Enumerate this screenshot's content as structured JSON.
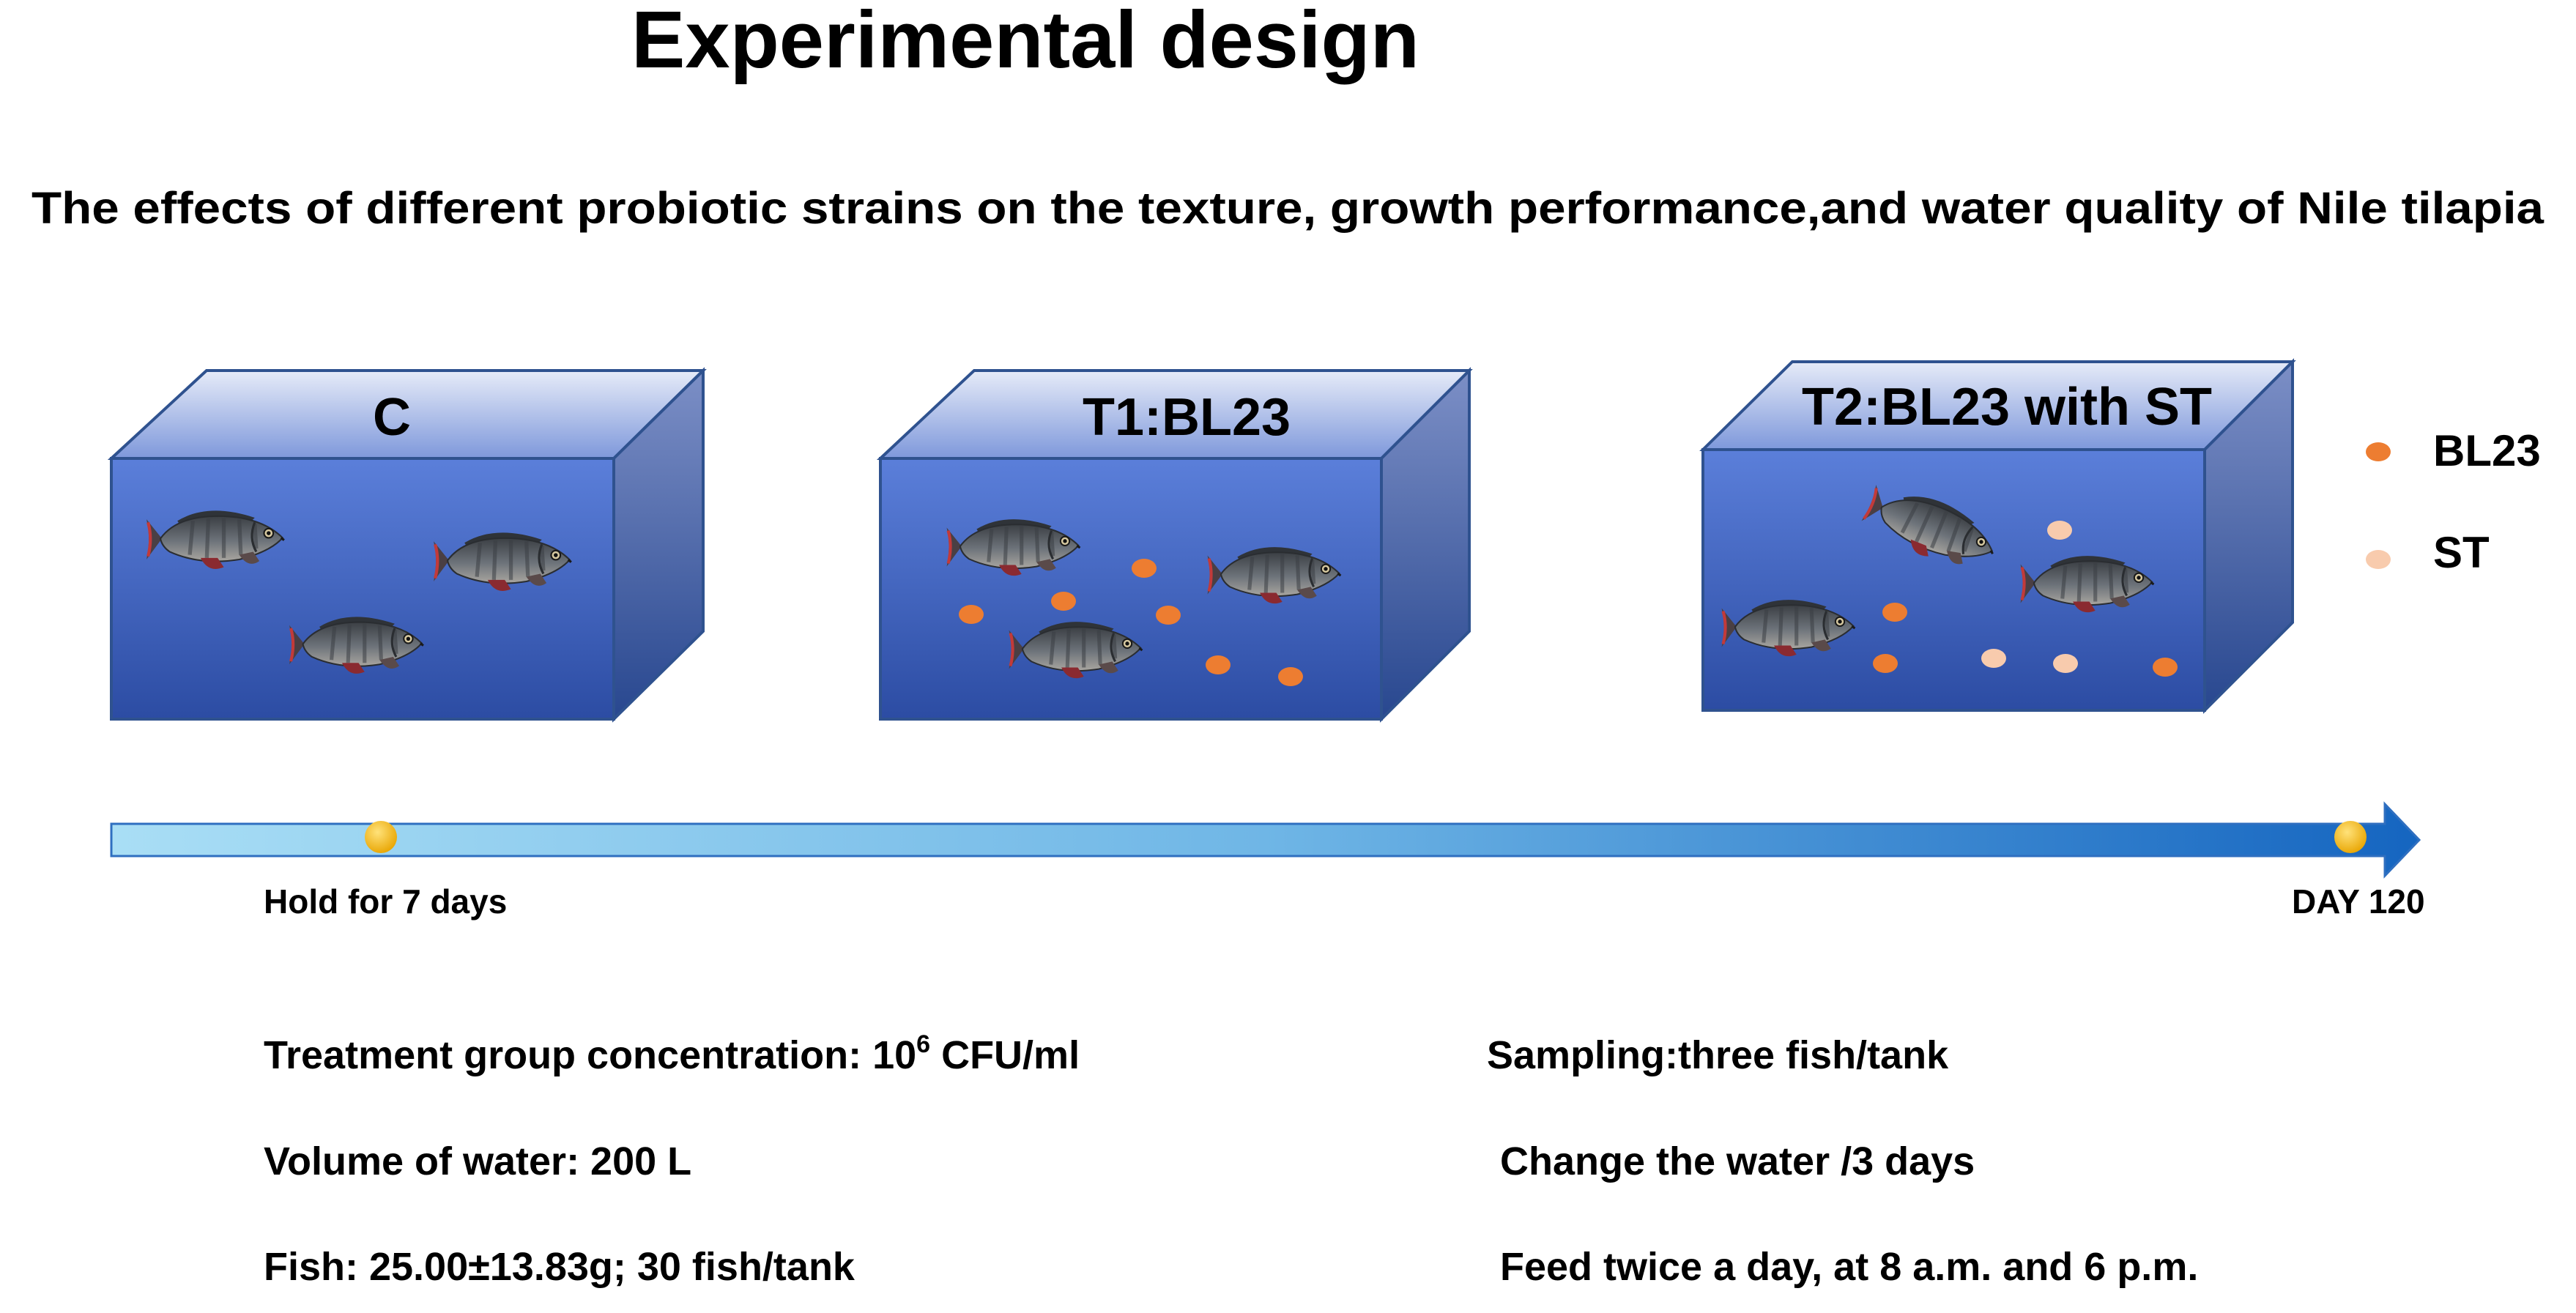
{
  "title": "Experimental design",
  "subtitle": "The effects of different probiotic strains on the texture, growth performance,and water quality of Nile tilapia",
  "tanks": [
    {
      "label": "C"
    },
    {
      "label": "T1:BL23"
    },
    {
      "label": "T2:BL23 with ST"
    }
  ],
  "legend": [
    {
      "label": "BL23",
      "color": "#ED7D31"
    },
    {
      "label": "ST",
      "color": "#F8CBAD"
    }
  ],
  "timeline": {
    "start_label": "Hold for 7 days",
    "end_label": "DAY 120"
  },
  "details": {
    "left": {
      "concentration_prefix": "Treatment group concentration: 10",
      "concentration_exp": "6",
      "concentration_suffix": " CFU/ml",
      "volume": "Volume of water:  200 L",
      "fish": "Fish:  25.00±13.83g;  30 fish/tank"
    },
    "right": {
      "sampling": "Sampling:three fish/tank",
      "water_change": "Change the water /3 days",
      "feed": "Feed twice a day, at 8 a.m. and 6 p.m."
    }
  },
  "colors": {
    "tank_front_top": "#4A6FD0",
    "tank_front_bottom": "#2E4FA8",
    "tank_outline": "#2F528F",
    "arrow_light": "#9CD8F2",
    "arrow_dark": "#1E6EC8",
    "marker": "#F5B400"
  }
}
